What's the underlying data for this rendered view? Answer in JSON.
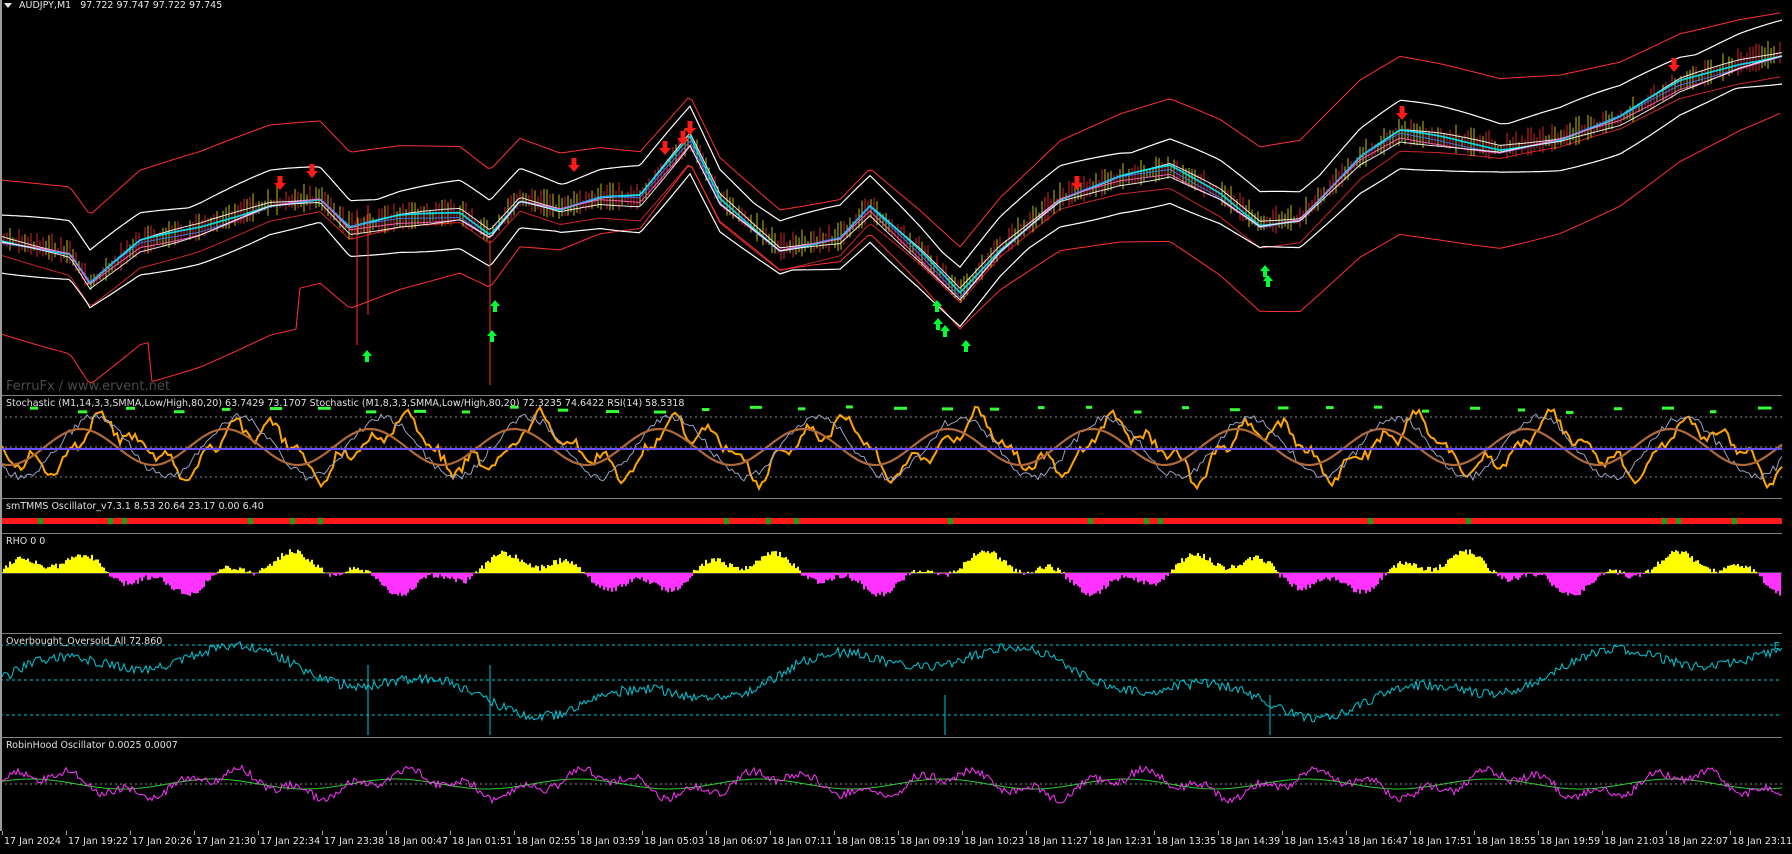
{
  "symbol": {
    "title": "AUDJPY,M1",
    "quote": "97.722 97.747 97.722 97.745"
  },
  "main_chart": {
    "watermark": "FerruFx / www.ervent.net",
    "colors": {
      "background": "#000000",
      "price": "#00e5ff",
      "envelope": "#ff3030",
      "bands": "#ffffff",
      "up_arrow": "#00ff33",
      "down_arrow": "#ff1a1a"
    }
  },
  "indicators": [
    {
      "id": "stochastic",
      "label": "Stochastic (M1,14,3,3,SMMA,Low/High,80,20) 63.7429 73.1707  Stochastic (M1,8,3,3,SMMA,Low/High,80,20) 72.3235 74.6422  RSI(14) 58.5318"
    },
    {
      "id": "smtmms",
      "label": "smTMMS Oscillator_v7.3.1 8.53 20.64 23.17 0.00 6.40"
    },
    {
      "id": "rho",
      "label": "RHO 0 0"
    },
    {
      "id": "obos",
      "label": "Overbought_Oversold_All 72.860"
    },
    {
      "id": "robinhood",
      "label": "RobinHood Oscillator 0.0025 0.0007"
    }
  ],
  "time_axis": [
    "17 Jan 2024",
    "17 Jan 19:22",
    "17 Jan 20:26",
    "17 Jan 21:30",
    "17 Jan 22:34",
    "17 Jan 23:38",
    "18 Jan 00:47",
    "18 Jan 01:51",
    "18 Jan 02:55",
    "18 Jan 03:59",
    "18 Jan 05:03",
    "18 Jan 06:07",
    "18 Jan 07:11",
    "18 Jan 08:15",
    "18 Jan 09:19",
    "18 Jan 10:23",
    "18 Jan 11:27",
    "18 Jan 12:31",
    "18 Jan 13:35",
    "18 Jan 14:39",
    "18 Jan 15:43",
    "18 Jan 16:47",
    "18 Jan 17:51",
    "18 Jan 18:55",
    "18 Jan 19:59",
    "18 Jan 21:03",
    "18 Jan 22:07",
    "18 Jan 23:11"
  ],
  "obos_side_marker": "E"
}
